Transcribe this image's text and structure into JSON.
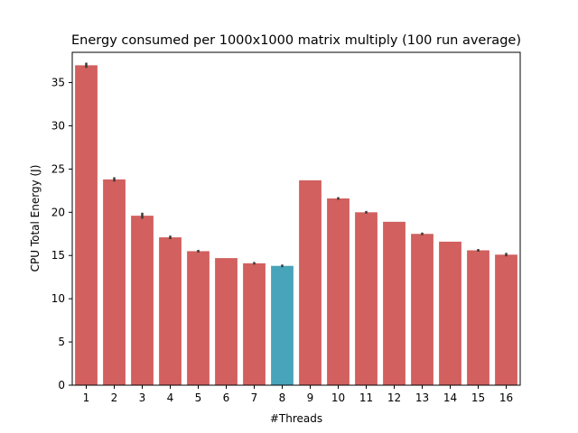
{
  "chart_data": {
    "type": "bar",
    "title": "Energy consumed per 1000x1000 matrix multiply (100 run average)",
    "xlabel": "#Threads",
    "ylabel": "CPU Total Energy (J)",
    "categories": [
      "1",
      "2",
      "3",
      "4",
      "5",
      "6",
      "7",
      "8",
      "9",
      "10",
      "11",
      "12",
      "13",
      "14",
      "15",
      "16"
    ],
    "values": [
      37.0,
      23.8,
      19.6,
      17.1,
      15.5,
      14.7,
      14.1,
      13.8,
      23.7,
      21.6,
      20.0,
      18.9,
      17.5,
      16.6,
      15.6,
      15.1
    ],
    "error_bars": [
      0.3,
      0.25,
      0.35,
      0.2,
      0.15,
      0.0,
      0.15,
      0.15,
      0.0,
      0.15,
      0.15,
      0.0,
      0.15,
      0.0,
      0.15,
      0.2
    ],
    "ylim": [
      0,
      38.5
    ],
    "yticks": [
      0,
      5,
      10,
      15,
      20,
      25,
      30,
      35
    ],
    "grid": false,
    "bar_color": "#d1605e",
    "highlight_color": "#47a4bb",
    "highlight_category": "8",
    "errorbar_color": "#3a3a3a"
  }
}
